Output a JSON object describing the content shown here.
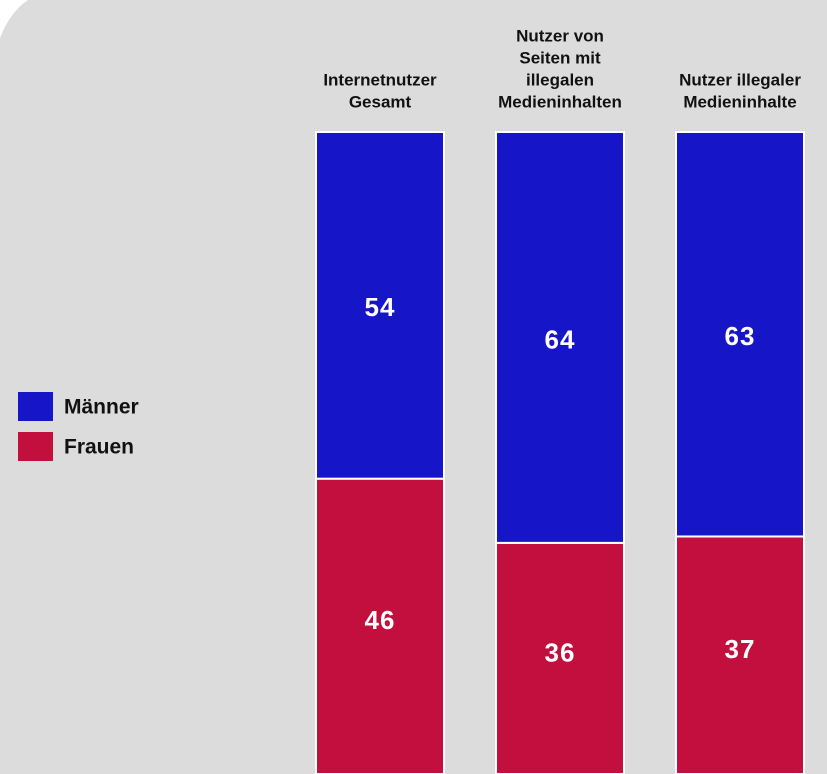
{
  "chart_data": {
    "type": "stacked-bar",
    "categories": [
      [
        "Internetnutzer",
        "Gesamt"
      ],
      [
        "Nutzer von",
        "Seiten mit",
        "illegalen",
        "Medieninhalten"
      ],
      [
        "Nutzer illegaler",
        "Medieninhalte"
      ]
    ],
    "series": [
      {
        "name": "Männer",
        "color": "#1616c8",
        "values": [
          54,
          64,
          63
        ]
      },
      {
        "name": "Frauen",
        "color": "#c20f3d",
        "values": [
          46,
          36,
          37
        ]
      }
    ],
    "ylim": [
      0,
      100
    ]
  }
}
